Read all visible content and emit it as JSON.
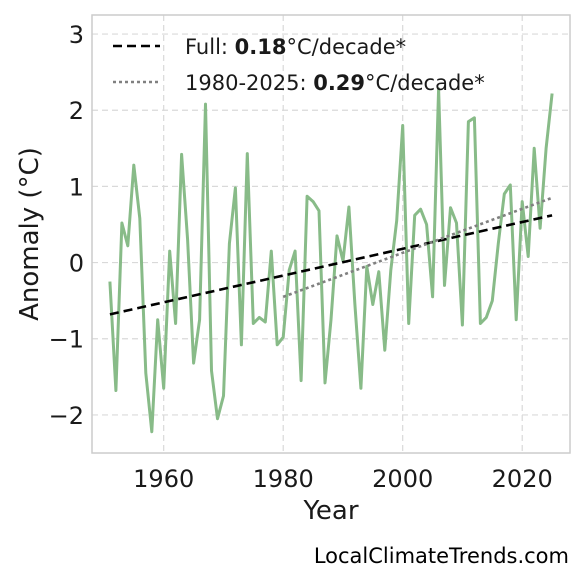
{
  "chart_data": {
    "type": "line",
    "xlabel": "Year",
    "ylabel": "Anomaly (°C)",
    "xlim": [
      1948,
      2028
    ],
    "ylim": [
      -2.5,
      3.25
    ],
    "xticks": [
      1960,
      1980,
      2000,
      2020
    ],
    "yticks": [
      -2,
      -1,
      0,
      1,
      2,
      3
    ],
    "ytick_labels": [
      "−2",
      "−1",
      "0",
      "1",
      "2",
      "3"
    ],
    "grid": true,
    "legend_placement": "top-left",
    "colors": {
      "series": "#88bb88",
      "full_trend": "#000000",
      "recent_trend": "#808080"
    },
    "series": [
      {
        "x": [
          1951,
          1952,
          1953,
          1954,
          1955,
          1956,
          1957,
          1958,
          1959,
          1960,
          1961,
          1962,
          1963,
          1964,
          1965,
          1966,
          1967,
          1968,
          1969,
          1970,
          1971,
          1972,
          1973,
          1974,
          1975,
          1976,
          1977,
          1978,
          1979,
          1980,
          1981,
          1982,
          1983,
          1984,
          1985,
          1986,
          1987,
          1988,
          1989,
          1990,
          1991,
          1992,
          1993,
          1994,
          1995,
          1996,
          1997,
          1998,
          1999,
          2000,
          2001,
          2002,
          2003,
          2004,
          2005,
          2006,
          2007,
          2008,
          2009,
          2010,
          2011,
          2012,
          2013,
          2014,
          2015,
          2016,
          2017,
          2018,
          2019,
          2020,
          2021,
          2022,
          2023,
          2024,
          2025
        ],
        "values": [
          -0.25,
          -1.68,
          0.52,
          0.22,
          1.28,
          0.58,
          -1.45,
          -2.22,
          -0.75,
          -1.65,
          0.15,
          -0.8,
          1.42,
          0.3,
          -1.32,
          -0.75,
          2.08,
          -1.42,
          -2.05,
          -1.75,
          0.25,
          0.98,
          -1.08,
          1.43,
          -0.8,
          -0.72,
          -0.78,
          0.15,
          -1.08,
          -0.98,
          -0.1,
          0.15,
          -1.55,
          0.87,
          0.8,
          0.68,
          -1.58,
          -0.75,
          0.35,
          0.02,
          0.73,
          -0.55,
          -1.65,
          -0.05,
          -0.55,
          -0.12,
          -1.15,
          -0.1,
          0.55,
          1.8,
          -0.8,
          0.62,
          0.7,
          0.5,
          -0.45,
          2.28,
          -0.3,
          0.72,
          0.52,
          -0.82,
          1.85,
          1.9,
          -0.8,
          -0.72,
          -0.5,
          0.25,
          0.9,
          1.02,
          -0.75,
          0.8,
          0.08,
          1.5,
          0.45,
          1.5,
          2.22
        ]
      }
    ],
    "trends": [
      {
        "x": [
          1951,
          2025
        ],
        "values": [
          -0.68,
          0.62
        ]
      },
      {
        "x": [
          1980,
          2025
        ],
        "values": [
          -0.45,
          0.85
        ]
      }
    ],
    "legend": [
      {
        "prefix": "Full: ",
        "value": "0.18",
        "suffix": "°C/decade*"
      },
      {
        "prefix": "1980-2025: ",
        "value": "0.29",
        "suffix": "°C/decade*"
      }
    ]
  },
  "credit": "LocalClimateTrends.com"
}
